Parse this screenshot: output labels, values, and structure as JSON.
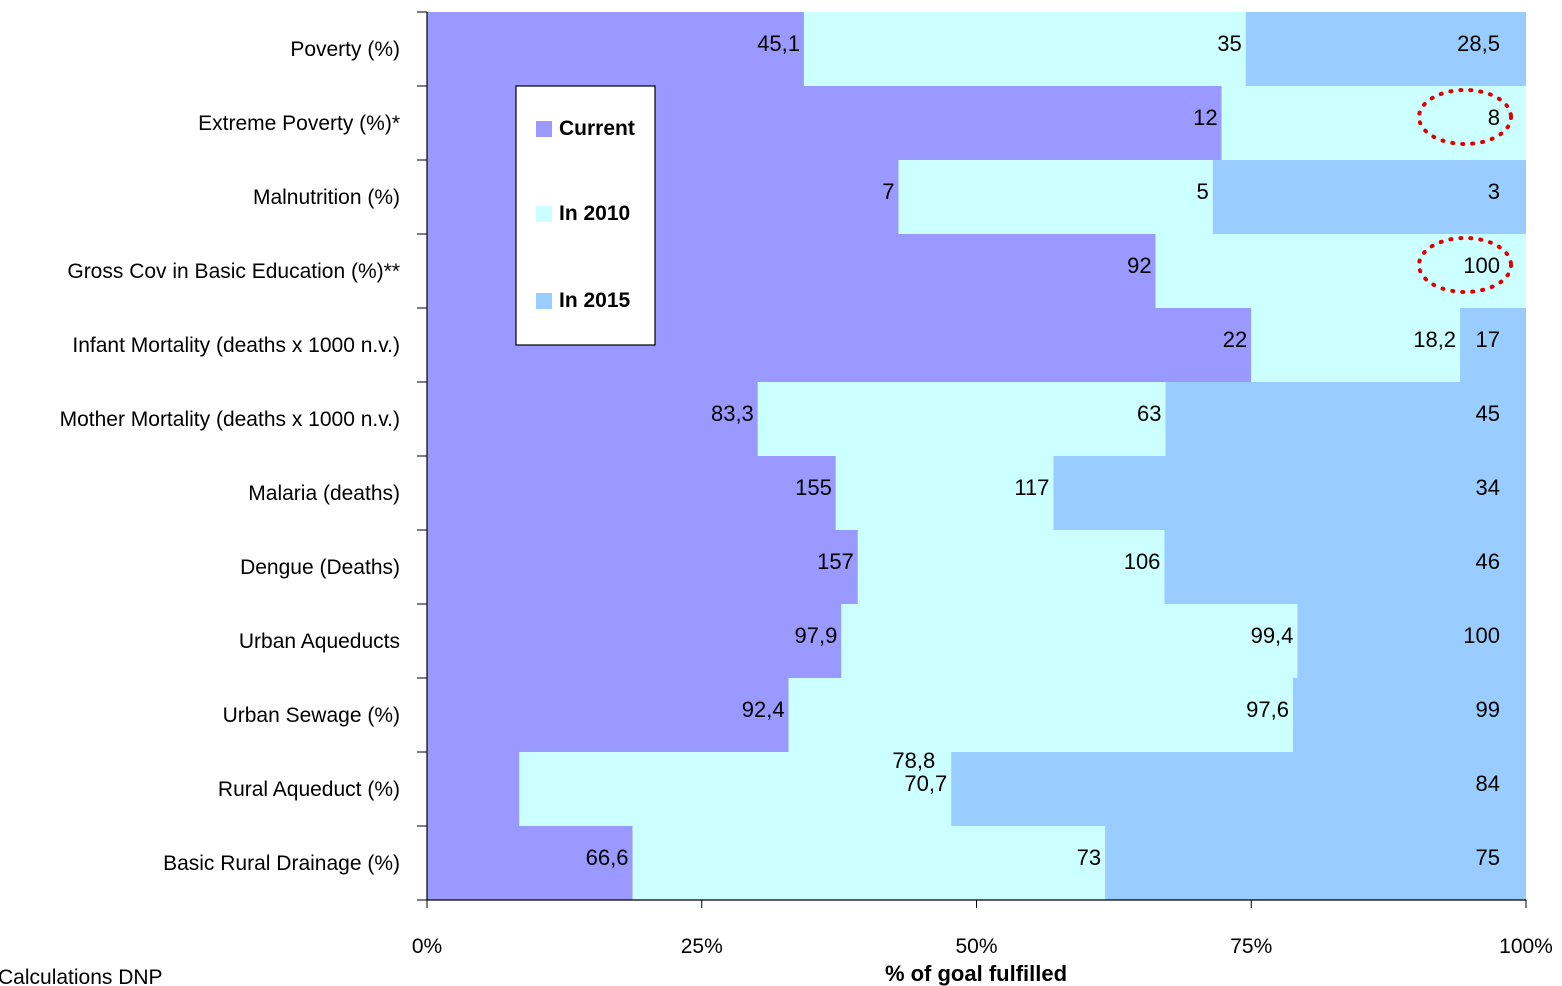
{
  "chart_data": {
    "type": "bar",
    "orientation": "horizontal",
    "stacked": true,
    "xlabel": "% of goal fulfilled",
    "xlim": [
      0,
      100
    ],
    "x_ticks": [
      "0%",
      "25%",
      "50%",
      "75%",
      "100%"
    ],
    "legend_position": "top-left inside plot",
    "series": [
      {
        "name": "Current",
        "color": "#9999ff"
      },
      {
        "name": "In 2010",
        "color": "#ccffff"
      },
      {
        "name": "In 2015",
        "color": "#99ccff"
      }
    ],
    "categories": [
      {
        "label": "Poverty (%)",
        "current_pct": 34.3,
        "in2010_pct": 40.2,
        "in2015_pct": 25.5,
        "current": "45,1",
        "in2010": "35",
        "in2015": "28,5",
        "highlight": false
      },
      {
        "label": "Extreme Poverty (%)*",
        "current_pct": 72.3,
        "in2010_pct": 27.7,
        "in2015_pct": 0,
        "current": "12",
        "in2010": "",
        "in2015": "8",
        "highlight": true
      },
      {
        "label": "Malnutrition (%)",
        "current_pct": 42.9,
        "in2010_pct": 28.6,
        "in2015_pct": 28.5,
        "current": "7",
        "in2010": "5",
        "in2015": "3",
        "highlight": false
      },
      {
        "label": "Gross Cov in Basic Education (%)**",
        "current_pct": 66.3,
        "in2010_pct": 33.7,
        "in2015_pct": 0,
        "current": "92",
        "in2010": "",
        "in2015": "100",
        "highlight": true
      },
      {
        "label": "Infant Mortality (deaths x 1000 n.v.)",
        "current_pct": 75.0,
        "in2010_pct": 19.0,
        "in2015_pct": 6.0,
        "current": "22",
        "in2010": "18,2",
        "in2015": "17",
        "highlight": false
      },
      {
        "label": "Mother Mortality (deaths x 1000 n.v.)",
        "current_pct": 30.1,
        "in2010_pct": 37.1,
        "in2015_pct": 32.8,
        "current": "83,3",
        "in2010": "63",
        "in2015": "45",
        "highlight": false
      },
      {
        "label": "Malaria (deaths)",
        "current_pct": 37.2,
        "in2010_pct": 19.8,
        "in2015_pct": 43.0,
        "current": "155",
        "in2010": "117",
        "in2015": "34",
        "highlight": false
      },
      {
        "label": "Dengue (Deaths)",
        "current_pct": 39.2,
        "in2010_pct": 27.9,
        "in2015_pct": 32.9,
        "current": "157",
        "in2010": "106",
        "in2015": "46",
        "highlight": false
      },
      {
        "label": "Urban Aqueducts",
        "current_pct": 37.7,
        "in2010_pct": 41.5,
        "in2015_pct": 20.8,
        "current": "97,9",
        "in2010": "99,4",
        "in2015": "100",
        "highlight": false
      },
      {
        "label": "Urban Sewage (%)",
        "current_pct": 32.9,
        "in2010_pct": 45.9,
        "in2015_pct": 21.2,
        "current": "92,4",
        "in2010": "97,6",
        "in2015": "99",
        "highlight": false
      },
      {
        "label": "Rural Aqueduct (%)",
        "current_pct": 8.4,
        "in2010_pct": 39.3,
        "in2015_pct": 52.3,
        "current": "",
        "in2010": "70,7",
        "in2015": "84",
        "extra": "78,8",
        "highlight": false
      },
      {
        "label": "Basic Rural Drainage (%)",
        "current_pct": 18.7,
        "in2010_pct": 43.0,
        "in2015_pct": 38.3,
        "current": "66,6",
        "in2010": "73",
        "in2015": "75",
        "highlight": false
      }
    ]
  },
  "source_note": "Calculations DNP"
}
